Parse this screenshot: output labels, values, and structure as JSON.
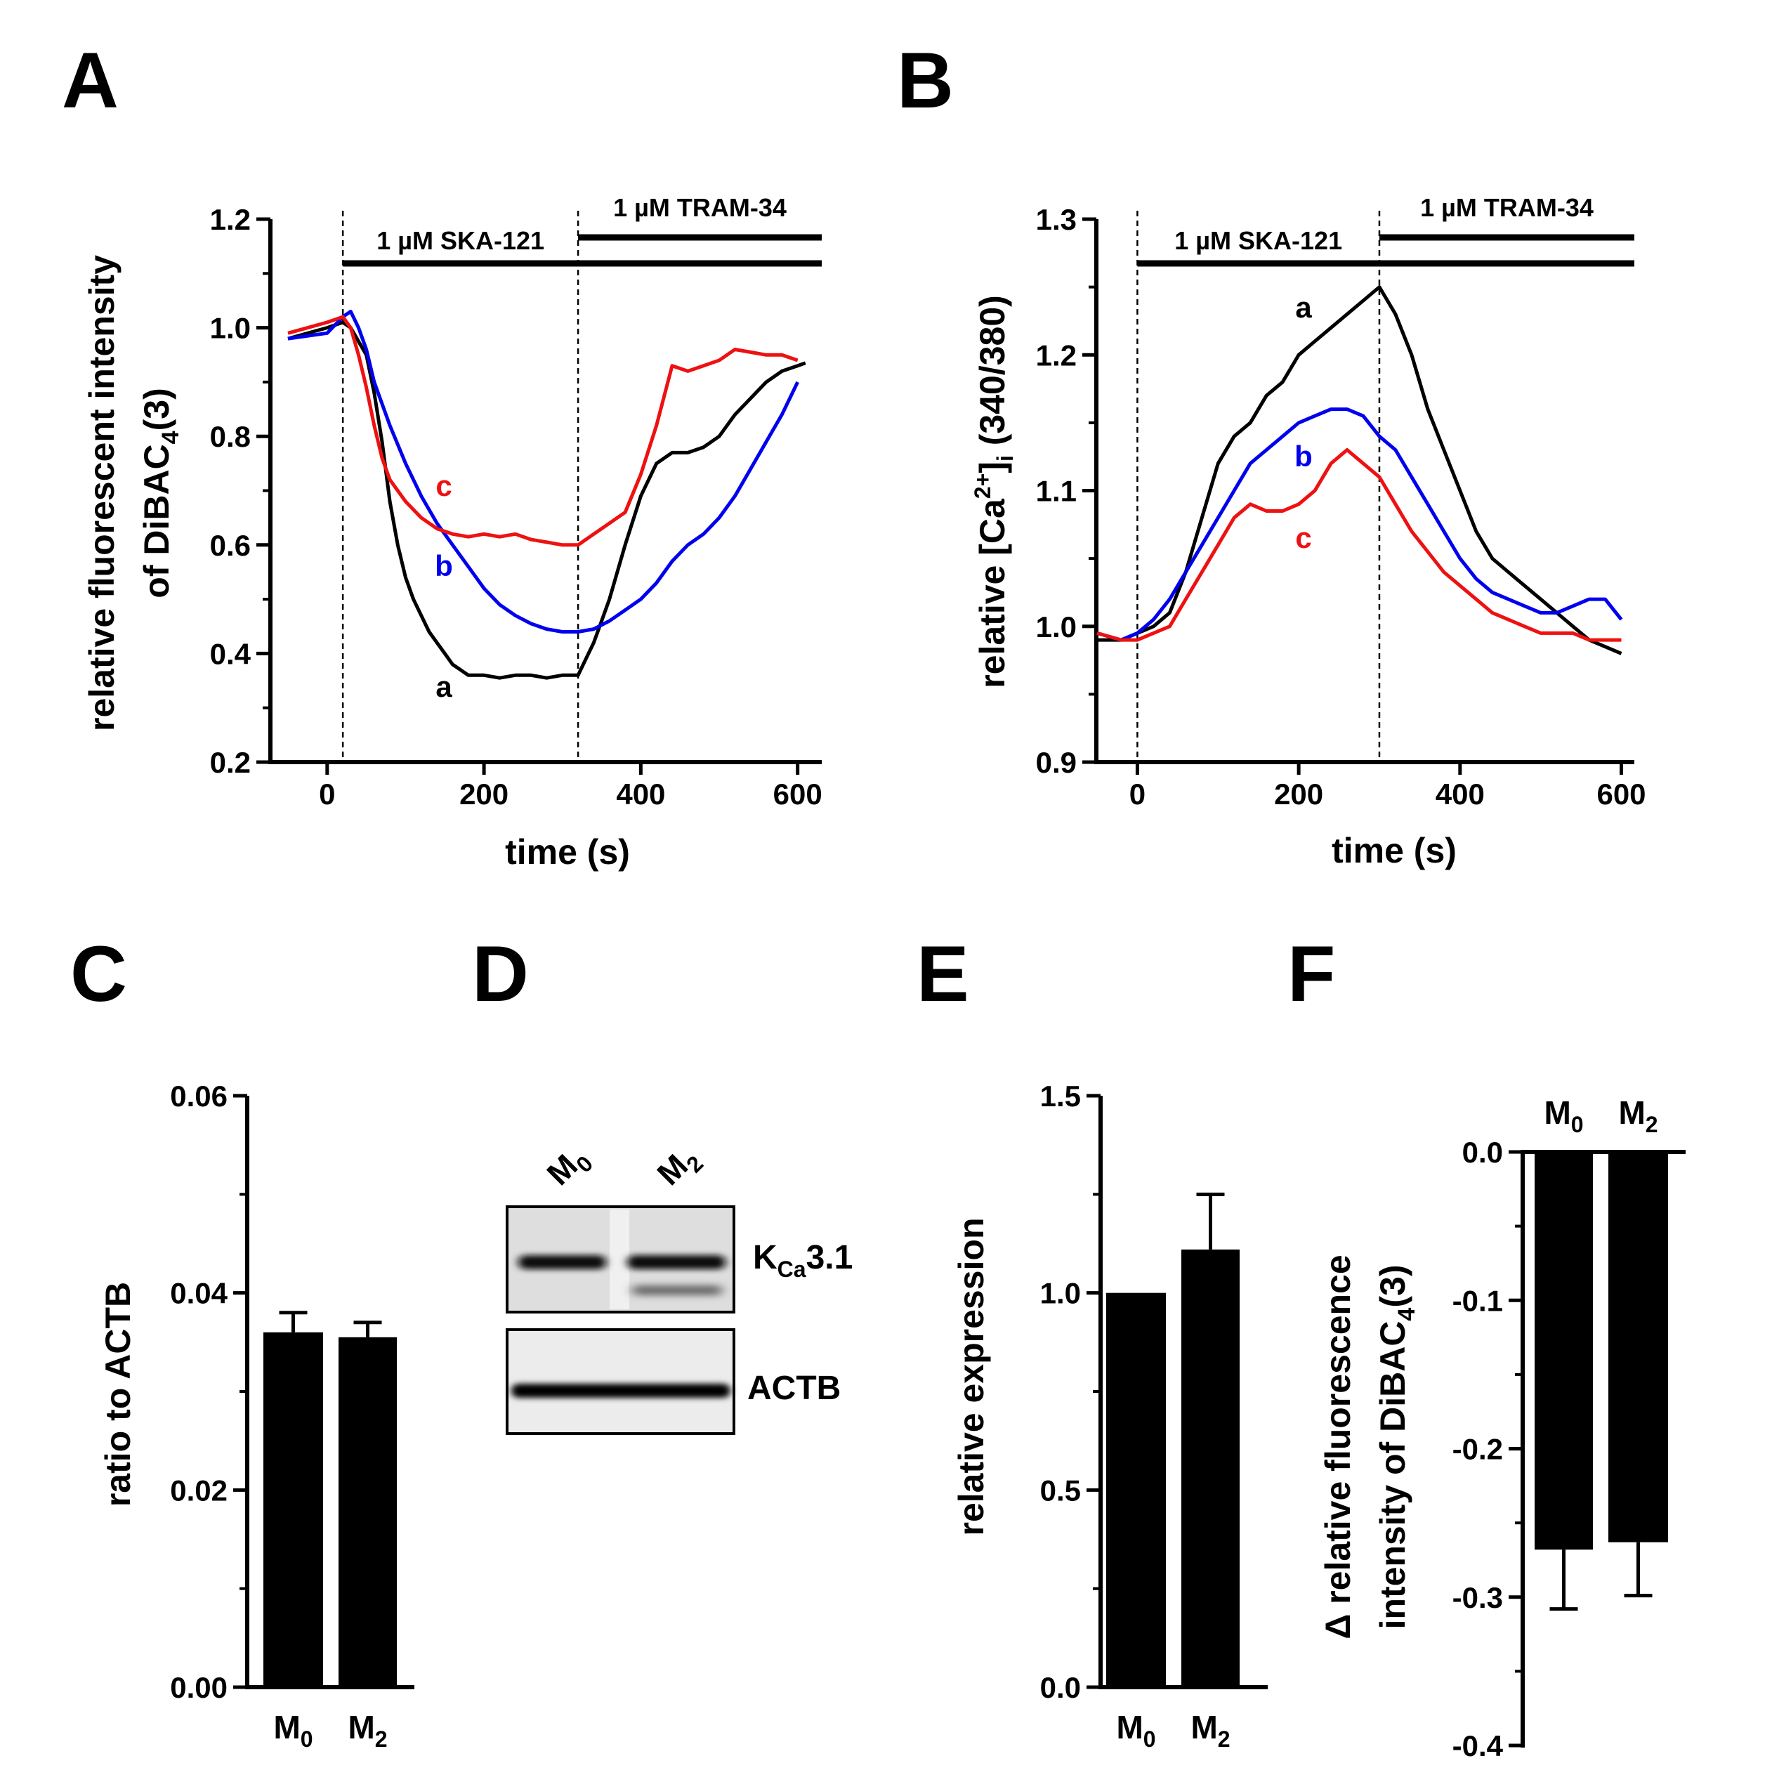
{
  "panels": {
    "A": "A",
    "B": "B",
    "C": "C",
    "D": "D",
    "E": "E",
    "F": "F"
  },
  "colors": {
    "a": "#000000",
    "b": "#0000ee",
    "c": "#ee1111"
  },
  "treatments": {
    "ska": "1 µM SKA-121",
    "tram": "1 µM TRAM-34"
  },
  "chart_data": [
    {
      "id": "A",
      "type": "line",
      "xlabel": "time (s)",
      "ylabel_line1": "relative fluorescent intensity",
      "ylabel_line2_pre": "of DiBAC",
      "ylabel_line2_sub": "4",
      "ylabel_line2_post": "(3)",
      "xlim": [
        -50,
        620
      ],
      "ylim": [
        0.2,
        1.2
      ],
      "xticks": [
        0,
        200,
        400,
        600
      ],
      "yticks": [
        1.2,
        1.0,
        0.8,
        0.6,
        0.4,
        0.2
      ],
      "xtick_labels": [
        "0",
        "200",
        "400",
        "600"
      ],
      "ytick_labels": [
        "1.2",
        "1.0",
        "0.8",
        "0.6",
        "0.4",
        "0.2"
      ],
      "events": [
        20,
        320
      ],
      "series": [
        {
          "name": "a",
          "color": "#000000",
          "x": [
            -50,
            0,
            20,
            30,
            50,
            60,
            70,
            80,
            90,
            100,
            110,
            120,
            130,
            140,
            150,
            160,
            170,
            180,
            200,
            220,
            240,
            260,
            280,
            300,
            320,
            330,
            340,
            350,
            360,
            380,
            400,
            420,
            440,
            460,
            480,
            500,
            520,
            540,
            560,
            580,
            600,
            610
          ],
          "y": [
            0.98,
            1.0,
            1.01,
            1.0,
            0.95,
            0.88,
            0.79,
            0.68,
            0.6,
            0.54,
            0.5,
            0.47,
            0.44,
            0.42,
            0.4,
            0.38,
            0.37,
            0.36,
            0.36,
            0.355,
            0.36,
            0.36,
            0.355,
            0.36,
            0.36,
            0.39,
            0.42,
            0.46,
            0.5,
            0.6,
            0.69,
            0.75,
            0.77,
            0.77,
            0.78,
            0.8,
            0.84,
            0.87,
            0.9,
            0.92,
            0.93,
            0.935
          ]
        },
        {
          "name": "b",
          "color": "#0000ee",
          "x": [
            -50,
            0,
            20,
            30,
            40,
            50,
            60,
            80,
            100,
            120,
            140,
            160,
            180,
            200,
            220,
            240,
            260,
            280,
            300,
            320,
            340,
            360,
            380,
            400,
            420,
            440,
            460,
            480,
            500,
            520,
            540,
            560,
            580,
            600
          ],
          "y": [
            0.98,
            0.99,
            1.02,
            1.03,
            1.0,
            0.96,
            0.9,
            0.82,
            0.75,
            0.69,
            0.64,
            0.6,
            0.56,
            0.52,
            0.49,
            0.47,
            0.455,
            0.445,
            0.44,
            0.44,
            0.445,
            0.46,
            0.48,
            0.5,
            0.53,
            0.57,
            0.6,
            0.62,
            0.65,
            0.69,
            0.74,
            0.79,
            0.84,
            0.9
          ]
        },
        {
          "name": "c",
          "color": "#ee1111",
          "x": [
            -50,
            0,
            20,
            30,
            40,
            50,
            60,
            70,
            80,
            100,
            120,
            140,
            160,
            180,
            200,
            220,
            240,
            260,
            280,
            300,
            320,
            340,
            360,
            380,
            400,
            420,
            440,
            460,
            480,
            500,
            520,
            540,
            560,
            580,
            600
          ],
          "y": [
            0.99,
            1.01,
            1.02,
            1.0,
            0.95,
            0.89,
            0.82,
            0.76,
            0.72,
            0.68,
            0.65,
            0.63,
            0.62,
            0.615,
            0.62,
            0.615,
            0.62,
            0.61,
            0.605,
            0.6,
            0.6,
            0.62,
            0.64,
            0.66,
            0.73,
            0.82,
            0.93,
            0.92,
            0.93,
            0.94,
            0.96,
            0.955,
            0.95,
            0.95,
            0.94
          ]
        }
      ],
      "trace_labels": [
        {
          "text": "a",
          "x": 150,
          "y": 0.34,
          "color": "#000000"
        },
        {
          "text": "b",
          "x": 150,
          "y": 0.57,
          "color": "#0000ee"
        },
        {
          "text": "c",
          "x": 150,
          "y": 0.5,
          "color": "#ee1111"
        }
      ]
    },
    {
      "id": "B",
      "type": "line",
      "xlabel": "time (s)",
      "ylabel_pre": "relative [Ca",
      "ylabel_sup": "2+",
      "ylabel_mid": "]",
      "ylabel_sub": "i",
      "ylabel_post": " (340/380)",
      "xlim": [
        -50,
        610
      ],
      "ylim": [
        0.9,
        1.3
      ],
      "xticks": [
        0,
        200,
        400,
        600
      ],
      "yticks": [
        1.3,
        1.2,
        1.1,
        1.0,
        0.9
      ],
      "xtick_labels": [
        "0",
        "200",
        "400",
        "600"
      ],
      "ytick_labels": [
        "1.3",
        "1.2",
        "1.1",
        "1.0",
        "0.9"
      ],
      "events": [
        0,
        300
      ],
      "series": [
        {
          "name": "a",
          "color": "#000000",
          "x": [
            -50,
            -20,
            0,
            20,
            40,
            60,
            80,
            100,
            120,
            140,
            160,
            180,
            200,
            220,
            240,
            260,
            280,
            300,
            320,
            340,
            360,
            380,
            400,
            420,
            440,
            460,
            480,
            500,
            520,
            540,
            560,
            580,
            600
          ],
          "y": [
            0.99,
            0.99,
            0.995,
            1.0,
            1.01,
            1.04,
            1.08,
            1.12,
            1.14,
            1.15,
            1.17,
            1.18,
            1.2,
            1.21,
            1.22,
            1.23,
            1.24,
            1.25,
            1.23,
            1.2,
            1.16,
            1.13,
            1.1,
            1.07,
            1.05,
            1.04,
            1.03,
            1.02,
            1.01,
            1.0,
            0.99,
            0.985,
            0.98
          ]
        },
        {
          "name": "b",
          "color": "#0000ee",
          "x": [
            -50,
            -20,
            0,
            20,
            40,
            60,
            80,
            100,
            120,
            140,
            160,
            180,
            200,
            220,
            240,
            260,
            280,
            300,
            320,
            340,
            360,
            380,
            400,
            420,
            440,
            460,
            480,
            500,
            520,
            540,
            560,
            580,
            600
          ],
          "y": [
            0.995,
            0.99,
            0.995,
            1.005,
            1.02,
            1.04,
            1.06,
            1.08,
            1.1,
            1.12,
            1.13,
            1.14,
            1.15,
            1.155,
            1.16,
            1.16,
            1.155,
            1.14,
            1.13,
            1.11,
            1.09,
            1.07,
            1.05,
            1.035,
            1.025,
            1.02,
            1.015,
            1.01,
            1.01,
            1.015,
            1.02,
            1.02,
            1.005
          ]
        },
        {
          "name": "c",
          "color": "#ee1111",
          "x": [
            -50,
            -20,
            0,
            20,
            40,
            60,
            80,
            100,
            120,
            140,
            160,
            180,
            200,
            220,
            240,
            260,
            280,
            300,
            320,
            340,
            360,
            380,
            400,
            420,
            440,
            460,
            480,
            500,
            520,
            540,
            560,
            580,
            600
          ],
          "y": [
            0.995,
            0.99,
            0.99,
            0.995,
            1.0,
            1.02,
            1.04,
            1.06,
            1.08,
            1.09,
            1.085,
            1.085,
            1.09,
            1.1,
            1.12,
            1.13,
            1.12,
            1.11,
            1.09,
            1.07,
            1.055,
            1.04,
            1.03,
            1.02,
            1.01,
            1.005,
            1.0,
            0.995,
            0.995,
            0.995,
            0.99,
            0.99,
            0.99
          ]
        }
      ],
      "trace_labels": [
        {
          "text": "a",
          "x": 190,
          "y": 1.22,
          "color": "#000000"
        },
        {
          "text": "b",
          "x": 190,
          "y": 1.115,
          "color": "#0000ee"
        },
        {
          "text": "c",
          "x": 190,
          "y": 1.06,
          "color": "#ee1111"
        }
      ]
    },
    {
      "id": "C",
      "type": "bar",
      "ylabel": "ratio to ACTB",
      "ylim": [
        0,
        0.06
      ],
      "yticks": [
        0.06,
        0.04,
        0.02,
        0.0
      ],
      "ytick_labels": [
        "0.06",
        "0.04",
        "0.02",
        "0.00"
      ],
      "minor_yticks": [
        0.05,
        0.03,
        0.01
      ],
      "categories": [
        {
          "base": "M",
          "sub": "0"
        },
        {
          "base": "M",
          "sub": "2"
        }
      ],
      "values": [
        0.036,
        0.0355
      ],
      "errors": [
        0.002,
        0.0015
      ],
      "label_position": "bottom"
    },
    {
      "id": "E",
      "type": "bar",
      "ylabel": "relative expression",
      "ylim": [
        0,
        1.5
      ],
      "yticks": [
        1.5,
        1.0,
        0.5,
        0.0
      ],
      "ytick_labels": [
        "1.5",
        "1.0",
        "0.5",
        "0.0"
      ],
      "minor_yticks": [
        1.25,
        0.75,
        0.25
      ],
      "categories": [
        {
          "base": "M",
          "sub": "0"
        },
        {
          "base": "M",
          "sub": "2"
        }
      ],
      "values": [
        1.0,
        1.11
      ],
      "errors": [
        0,
        0.14
      ],
      "label_position": "bottom"
    },
    {
      "id": "F",
      "type": "bar",
      "ylabel_line1": "Δ relative fluorescence",
      "ylabel_line2_pre": "intensity of DiBAC",
      "ylabel_line2_sub": "4",
      "ylabel_line2_post": "(3)",
      "ylim": [
        -0.4,
        0.0
      ],
      "yticks": [
        0.0,
        -0.1,
        -0.2,
        -0.3,
        -0.4
      ],
      "ytick_labels": [
        "0.0",
        "-0.1",
        "-0.2",
        "-0.3",
        "-0.4"
      ],
      "minor_yticks": [
        -0.05,
        -0.15,
        -0.25,
        -0.35
      ],
      "categories": [
        {
          "base": "M",
          "sub": "0"
        },
        {
          "base": "M",
          "sub": "2"
        }
      ],
      "values": [
        -0.268,
        -0.263
      ],
      "errors": [
        0.04,
        0.036
      ],
      "label_position": "top"
    }
  ],
  "blot": {
    "lanes": [
      {
        "base": "M",
        "sub": "0"
      },
      {
        "base": "M",
        "sub": "2"
      }
    ],
    "kca_base": "K",
    "kca_sub": "Ca",
    "kca_post": "3.1",
    "actb": "ACTB"
  }
}
